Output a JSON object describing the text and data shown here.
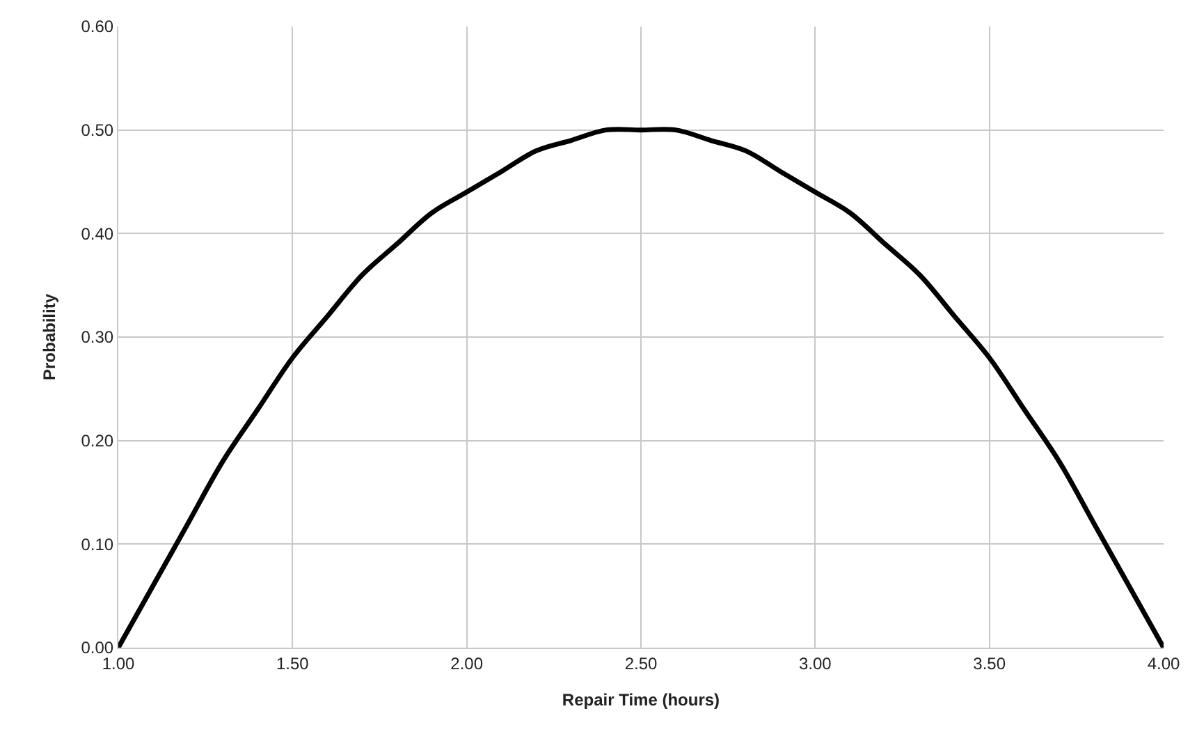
{
  "chart_data": {
    "type": "line",
    "xlabel": "Repair Time (hours)",
    "ylabel": "Probability",
    "x": [
      1.0,
      1.1,
      1.2,
      1.3,
      1.4,
      1.5,
      1.6,
      1.7,
      1.8,
      1.9,
      2.0,
      2.1,
      2.2,
      2.3,
      2.4,
      2.5,
      2.6,
      2.7,
      2.8,
      2.9,
      3.0,
      3.1,
      3.2,
      3.3,
      3.4,
      3.5,
      3.6,
      3.7,
      3.8,
      3.9,
      4.0
    ],
    "series": [
      {
        "color": "#000000",
        "values": [
          0.0,
          0.06,
          0.12,
          0.18,
          0.23,
          0.28,
          0.32,
          0.36,
          0.39,
          0.42,
          0.44,
          0.46,
          0.48,
          0.49,
          0.5,
          0.5,
          0.5,
          0.49,
          0.48,
          0.46,
          0.44,
          0.42,
          0.39,
          0.36,
          0.32,
          0.28,
          0.23,
          0.18,
          0.12,
          0.06,
          0.0
        ]
      }
    ],
    "xlim": [
      1.0,
      4.0
    ],
    "ylim": [
      0.0,
      0.6
    ],
    "xticks": [
      {
        "value": 1.0,
        "label": "1.00"
      },
      {
        "value": 1.5,
        "label": "1.50"
      },
      {
        "value": 2.0,
        "label": "2.00"
      },
      {
        "value": 2.5,
        "label": "2.50"
      },
      {
        "value": 3.0,
        "label": "3.00"
      },
      {
        "value": 3.5,
        "label": "3.50"
      },
      {
        "value": 4.0,
        "label": "4.00"
      }
    ],
    "yticks": [
      {
        "value": 0.0,
        "label": "0.00"
      },
      {
        "value": 0.1,
        "label": "0.10"
      },
      {
        "value": 0.2,
        "label": "0.20"
      },
      {
        "value": 0.3,
        "label": "0.30"
      },
      {
        "value": 0.4,
        "label": "0.40"
      },
      {
        "value": 0.5,
        "label": "0.50"
      },
      {
        "value": 0.6,
        "label": "0.60"
      }
    ],
    "grid": true,
    "legend": false,
    "marker": "none",
    "line_style": "solid"
  }
}
